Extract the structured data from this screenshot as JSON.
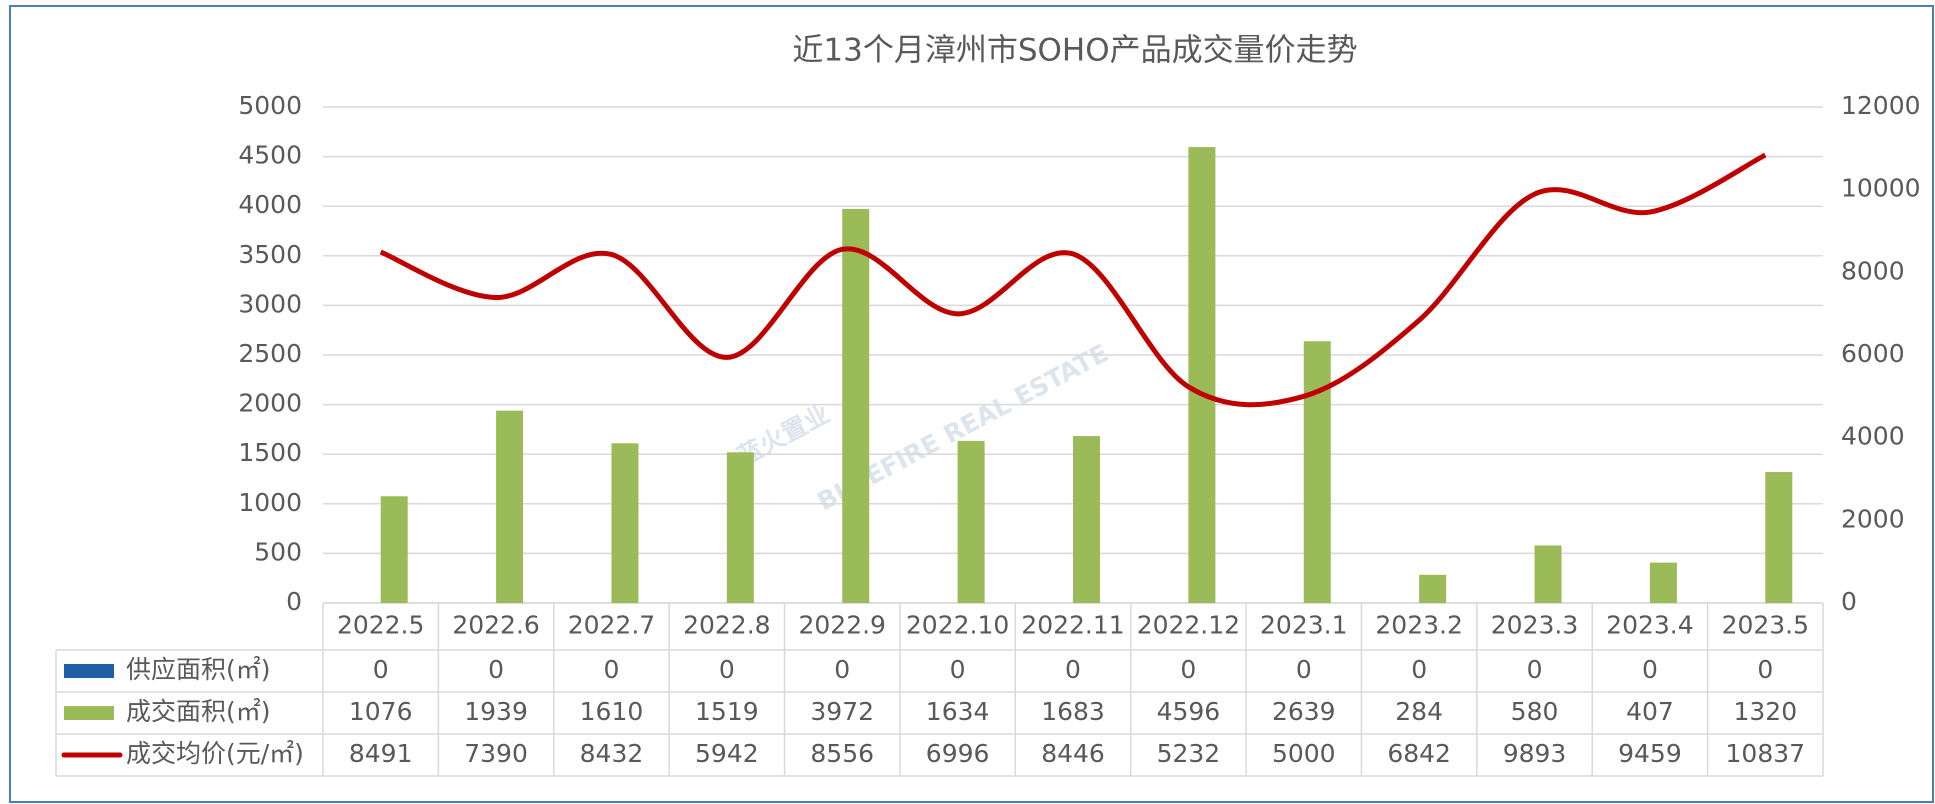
{
  "chart_data": {
    "type": "bar-line-table",
    "title": "近13个月漳州市SOHO产品成交量价走势",
    "watermark": [
      "蓝火置业",
      "BLUEFIRE REAL ESTATE"
    ],
    "categories": [
      "2022.5",
      "2022.6",
      "2022.7",
      "2022.8",
      "2022.9",
      "2022.10",
      "2022.11",
      "2022.12",
      "2023.1",
      "2023.2",
      "2023.3",
      "2023.4",
      "2023.5"
    ],
    "series": [
      {
        "name": "供应面积(㎡)",
        "type": "bar",
        "color": "#1f5fa8",
        "values": [
          0,
          0,
          0,
          0,
          0,
          0,
          0,
          0,
          0,
          0,
          0,
          0,
          0
        ]
      },
      {
        "name": "成交面积(㎡)",
        "type": "bar",
        "color": "#9bbb59",
        "values": [
          1076,
          1939,
          1610,
          1519,
          3972,
          1634,
          1683,
          4596,
          2639,
          284,
          580,
          407,
          1320
        ]
      },
      {
        "name": "成交均价(元/㎡)",
        "type": "line",
        "axis": "y2",
        "smooth": true,
        "color": "#c00000",
        "values": [
          8491,
          7390,
          8432,
          5942,
          8556,
          6996,
          8446,
          5232,
          5000,
          6842,
          9893,
          9459,
          10837
        ]
      }
    ],
    "ylim": [
      0,
      5000
    ],
    "yticks": [
      0,
      500,
      1000,
      1500,
      2000,
      2500,
      3000,
      3500,
      4000,
      4500,
      5000
    ],
    "y2lim": [
      0,
      12000
    ],
    "y2ticks": [
      0,
      2000,
      4000,
      6000,
      8000,
      10000,
      12000
    ],
    "grid": true
  }
}
